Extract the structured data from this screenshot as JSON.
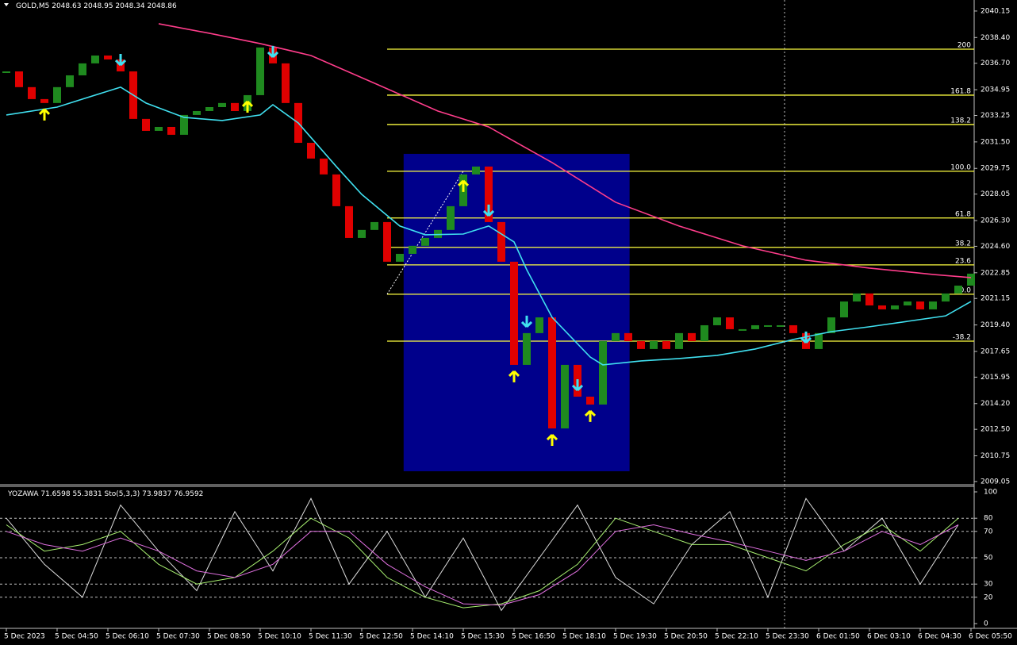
{
  "chart_data": [
    {
      "type": "price",
      "symbol": "GOLD,M5",
      "ohlc": [
        2048.63,
        2048.95,
        2048.34,
        2048.86
      ],
      "ylim": [
        2008.89,
        2040.88
      ],
      "yticks": [
        2040.15,
        {
          "value": 2038.4,
          "label": "2038.40"
        },
        {
          "value": 2036.7,
          "label": "2036.70"
        },
        2034.95,
        2033.25,
        {
          "value": 2031.5,
          "label": "2031.50"
        },
        2029.75,
        2028.05,
        {
          "value": 2026.3,
          "label": "2026.30"
        },
        {
          "value": 2024.6,
          "label": "2024.60"
        },
        2022.85,
        2021.15,
        {
          "value": 2019.4,
          "label": "2019.40"
        },
        2017.65,
        2015.95,
        {
          "value": 2014.2,
          "label": "2014.20"
        },
        {
          "value": 2012.5,
          "label": "2012.50"
        },
        2010.75,
        2009.05
      ],
      "xticks": [
        {
          "value": 0,
          "label": "5 Dec 2023"
        },
        {
          "value": 4,
          "label": "5 Dec 04:50"
        },
        {
          "value": 8,
          "label": "5 Dec 06:10"
        },
        {
          "value": 12,
          "label": "5 Dec 07:30"
        },
        {
          "value": 16,
          "label": "5 Dec 08:50"
        },
        {
          "value": 20,
          "label": "5 Dec 10:10"
        },
        {
          "value": 24,
          "label": "5 Dec 11:30"
        },
        {
          "value": 28,
          "label": "5 Dec 12:50"
        },
        {
          "value": 32,
          "label": "5 Dec 14:10"
        },
        {
          "value": 36,
          "label": "5 Dec 15:30"
        },
        {
          "value": 40,
          "label": "5 Dec 16:50"
        },
        {
          "value": 44,
          "label": "5 Dec 18:10"
        },
        {
          "value": 48,
          "label": "5 Dec 19:30"
        },
        {
          "value": 52,
          "label": "5 Dec 20:50"
        },
        {
          "value": 56,
          "label": "5 Dec 22:10"
        },
        {
          "value": 60,
          "label": "5 Dec 23:30"
        },
        {
          "value": 64,
          "label": "6 Dec 01:50"
        },
        {
          "value": 68,
          "label": "6 Dec 03:10"
        },
        {
          "value": 72,
          "label": "6 Dec 04:30"
        },
        {
          "value": 76,
          "label": "6 Dec 05:50"
        }
      ],
      "close": [
        2036.16,
        2035.12,
        2034.33,
        2034.07,
        2035.12,
        2035.9,
        2036.69,
        2037.21,
        2036.95,
        2036.16,
        2033.02,
        2032.23,
        2032.49,
        2031.97,
        2033.28,
        2033.54,
        2033.8,
        2034.07,
        2033.54,
        2034.59,
        2037.74,
        2036.69,
        2034.07,
        2031.44,
        2030.4,
        2029.35,
        2027.25,
        2025.15,
        2025.68,
        2026.2,
        2023.58,
        2024.1,
        2024.63,
        2025.15,
        2025.68,
        2027.25,
        2029.35,
        2029.87,
        2026.2,
        2023.58,
        2016.76,
        2018.86,
        2019.9,
        2012.56,
        2016.76,
        2014.66,
        2014.14,
        2018.33,
        2018.86,
        2018.33,
        2017.81,
        2018.33,
        2017.81,
        2018.86,
        2018.33,
        2019.38,
        2019.9,
        2019.12,
        2019.12,
        2019.38,
        2019.38,
        2019.38,
        2018.86,
        2017.81,
        2018.86,
        2019.9,
        2020.95,
        2021.48,
        2020.69,
        2020.43,
        2020.69,
        2020.95,
        2020.43,
        2020.95,
        2021.48,
        2022.0,
        2022.79
      ],
      "up_color": "#1f8a1f",
      "down_color": "#e00000",
      "series": [
        {
          "color": "#ff3d8b",
          "x": [
            12,
            16,
            20,
            24,
            29,
            34,
            38,
            43,
            48,
            53,
            58,
            63,
            68,
            73,
            76
          ],
          "values": [
            2039.31,
            2038.68,
            2038.0,
            2037.21,
            2035.38,
            2033.54,
            2032.49,
            2030.13,
            2027.51,
            2025.94,
            2024.63,
            2023.68,
            2023.16,
            2022.74,
            2022.53
          ]
        },
        {
          "color": "#40e0f0",
          "x": [
            0,
            4,
            6,
            9,
            11,
            14,
            17,
            20,
            21,
            23,
            26,
            28,
            31,
            33,
            36,
            38,
            40,
            41,
            43,
            46,
            47,
            50,
            53,
            56,
            59,
            62,
            65,
            68,
            71,
            74,
            76
          ],
          "values": [
            2033.28,
            2033.8,
            2034.33,
            2035.12,
            2034.07,
            2033.12,
            2032.91,
            2033.28,
            2033.96,
            2032.75,
            2029.87,
            2028.03,
            2025.94,
            2025.36,
            2025.41,
            2025.94,
            2024.89,
            2023.05,
            2019.9,
            2017.28,
            2016.76,
            2017.02,
            2017.18,
            2017.39,
            2017.81,
            2018.44,
            2018.96,
            2019.28,
            2019.64,
            2020.0,
            2020.95
          ]
        }
      ],
      "signals_up": [
        3,
        19,
        36,
        40,
        43,
        46
      ],
      "signals_up_color": "#ffff00",
      "signals_down": [
        9,
        21,
        38,
        41,
        45,
        63
      ],
      "signals_down_color": "#40e0f0",
      "zone": {
        "x": [
          31.3,
          49.1
        ],
        "y": [
          2009.73,
          2030.71
        ],
        "color": "#00008b"
      },
      "fib": {
        "labels": [
          "200",
          "161.8",
          "138.2",
          "100.0",
          "61.8",
          "38.2",
          "23.6",
          "0.0",
          "-38.2"
        ],
        "prices": [
          2037.63,
          2034.59,
          2032.65,
          2029.56,
          2026.47,
          2024.53,
          2023.37,
          2021.43,
          2018.33
        ],
        "x": [
          30,
          36
        ],
        "color": "#ffff40"
      }
    },
    {
      "type": "line",
      "indicators": [
        {
          "name": "YOZAWA",
          "values": [
            71.6598,
            55.3831
          ]
        },
        {
          "name": "Sto(5,3,3)",
          "values": [
            73.9837,
            76.9592
          ]
        }
      ],
      "ylim": [
        0,
        100
      ],
      "yticks": [
        100,
        80,
        70,
        50,
        30,
        20,
        0
      ],
      "x": [
        0,
        3,
        6,
        9,
        12,
        15,
        18,
        21,
        24,
        27,
        30,
        33,
        36,
        39,
        42,
        45,
        48,
        51,
        54,
        57,
        60,
        63,
        66,
        69,
        72,
        75
      ],
      "series": [
        {
          "color": "#dddddd",
          "values": [
            80,
            45,
            20,
            90,
            55,
            25,
            85,
            40,
            95,
            30,
            70,
            20,
            65,
            10,
            50,
            90,
            35,
            15,
            60,
            85,
            20,
            95,
            55,
            80,
            30,
            75
          ]
        },
        {
          "color": "#a8f070",
          "values": [
            75,
            55,
            60,
            70,
            45,
            30,
            35,
            55,
            80,
            65,
            35,
            20,
            12,
            15,
            25,
            45,
            80,
            70,
            60,
            60,
            50,
            40,
            60,
            75,
            55,
            80
          ]
        },
        {
          "color": "#e070e0",
          "values": [
            70,
            60,
            55,
            65,
            55,
            40,
            35,
            45,
            70,
            70,
            45,
            28,
            15,
            14,
            22,
            40,
            70,
            75,
            68,
            62,
            55,
            48,
            55,
            70,
            60,
            75
          ]
        }
      ]
    }
  ]
}
